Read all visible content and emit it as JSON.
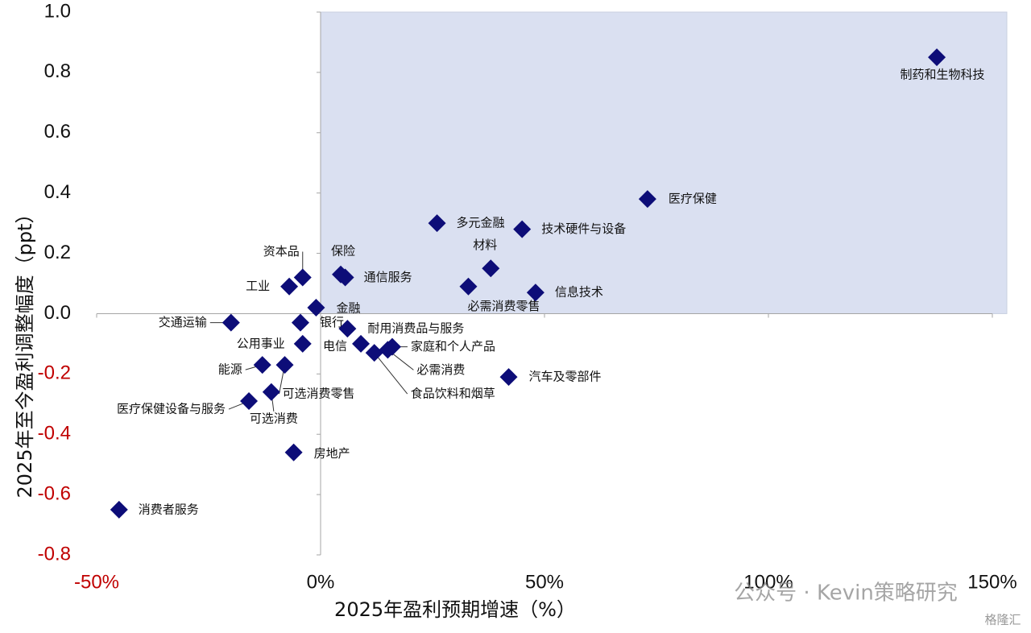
{
  "chart_data": {
    "type": "scatter",
    "x_label": "2025年盈利预期增速（%）",
    "y_label": "2025年至今盈利调整幅度（ppt）",
    "color": "#0d0d78",
    "negative_tick_color": "#c00000",
    "grid": false,
    "highlight": {
      "xlim": [
        0,
        150
      ],
      "ylim": [
        0,
        1.0
      ],
      "color": "#dae0f1"
    },
    "xlim": [
      -50,
      150
    ],
    "ylim": [
      -0.8,
      1.0
    ],
    "xticks": [
      {
        "value": -50,
        "label": "-50%"
      },
      {
        "value": 0,
        "label": "0%"
      },
      {
        "value": 50,
        "label": "50%"
      },
      {
        "value": 100,
        "label": "100%"
      },
      {
        "value": 150,
        "label": "150%"
      }
    ],
    "yticks": [
      {
        "value": 1,
        "label": "1.0"
      },
      0.8,
      0.6,
      0.4,
      0.2,
      {
        "value": 0,
        "label": "0.0"
      },
      -0.2,
      -0.4,
      -0.6,
      -0.8
    ],
    "point_labels": [
      "制药和生物科技",
      "医疗保健",
      "多元金融",
      "技术硬件与设备",
      "材料",
      "信息技术",
      "必需消费零售",
      "保险",
      "通信服务",
      "资本品",
      "工业",
      "金融",
      "交通运输",
      "银行",
      "公用事业",
      "耐用消费品与服务",
      "电信",
      "食品饮料和烟草",
      "家庭和个人产品",
      "必需消费",
      "汽车及零部件",
      "能源",
      "可选消费零售",
      "可选消费",
      "医疗保健设备与服务",
      "房地产",
      "消费者服务"
    ],
    "x": [
      137.6,
      73,
      26,
      45,
      38,
      48,
      33,
      4.5,
      5.5,
      -4,
      -7,
      -1,
      -20,
      -4.5,
      -4,
      6,
      9,
      12,
      16,
      15,
      42,
      -13,
      -8,
      -11,
      -16,
      -6,
      -45
    ],
    "values": [
      0.85,
      0.38,
      0.3,
      0.28,
      0.15,
      0.07,
      0.09,
      0.13,
      0.12,
      0.12,
      0.09,
      0.02,
      -0.03,
      -0.03,
      -0.1,
      -0.05,
      -0.1,
      -0.13,
      -0.11,
      -0.12,
      -0.21,
      -0.17,
      -0.17,
      -0.26,
      -0.29,
      -0.46,
      -0.65
    ]
  },
  "watermark": "公众号 · Kevin策略研究",
  "logo": "格隆汇"
}
